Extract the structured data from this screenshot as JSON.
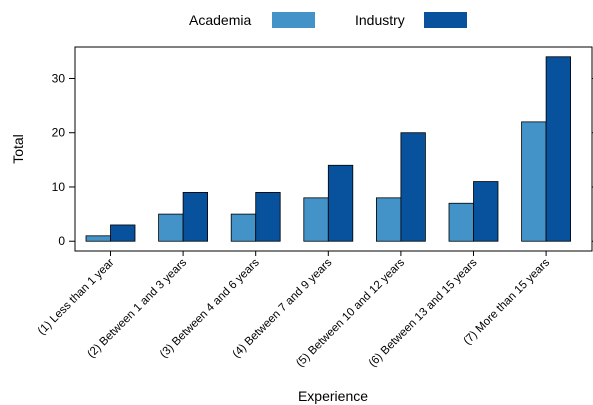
{
  "chart_data": {
    "type": "bar",
    "xlabel": "Experience",
    "ylabel": "Total",
    "ylim": [
      -1.8,
      35.8
    ],
    "yticks": [
      0,
      10,
      20,
      30
    ],
    "grid": false,
    "legend_position": "top",
    "categories": [
      "(1) Less than 1 year",
      "(2) Between 1 and 3 years",
      "(3) Between 4 and 6 years",
      "(4) Between 7 and 9 years",
      "(5) Between 10 and 12 years",
      "(6) Between 13 and 15 years",
      "(7) More than 15 years"
    ],
    "series": [
      {
        "name": "Academia",
        "color": "#4393c9",
        "values": [
          1,
          5,
          5,
          8,
          8,
          7,
          22
        ]
      },
      {
        "name": "Industry",
        "color": "#08519c",
        "values": [
          3,
          9,
          9,
          14,
          20,
          11,
          34
        ]
      }
    ]
  }
}
